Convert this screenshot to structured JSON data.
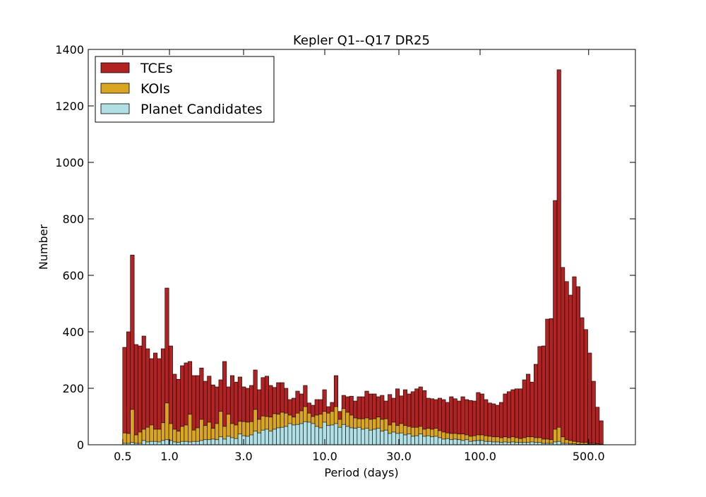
{
  "chart_data": {
    "type": "bar",
    "title": "Kepler Q1--Q17 DR25",
    "xlabel": "Period (days)",
    "ylabel": "Number",
    "xscale": "log",
    "xlim": [
      0.3,
      1000
    ],
    "ylim": [
      0,
      1400
    ],
    "grid": false,
    "legend_position": "top-left",
    "xticks": [
      0.5,
      1.0,
      3.0,
      10.0,
      30.0,
      100.0,
      500.0
    ],
    "xtick_labels": [
      "0.5",
      "1.0",
      "3.0",
      "10.0",
      "30.0",
      "100.0",
      "500.0"
    ],
    "yticks": [
      0,
      200,
      400,
      600,
      800,
      1000,
      1200,
      1400
    ],
    "ytick_labels": [
      "0",
      "200",
      "400",
      "600",
      "800",
      "1000",
      "1200",
      "1400"
    ],
    "bin_range": [
      0.5,
      620
    ],
    "series": [
      {
        "name": "TCEs",
        "color": "#b22222",
        "values": [
          345,
          400,
          672,
          355,
          350,
          385,
          340,
          305,
          325,
          305,
          340,
          555,
          350,
          250,
          232,
          280,
          290,
          295,
          245,
          245,
          272,
          225,
          243,
          212,
          205,
          230,
          295,
          205,
          245,
          222,
          240,
          205,
          200,
          210,
          265,
          195,
          238,
          243,
          210,
          203,
          220,
          220,
          200,
          160,
          165,
          190,
          180,
          210,
          148,
          140,
          160,
          160,
          195,
          135,
          150,
          245,
          118,
          175,
          170,
          172,
          155,
          170,
          170,
          190,
          180,
          180,
          170,
          175,
          155,
          178,
          165,
          198,
          173,
          195,
          180,
          188,
          198,
          205,
          192,
          165,
          163,
          160,
          165,
          160,
          150,
          170,
          163,
          155,
          170,
          160,
          157,
          155,
          185,
          180,
          160,
          148,
          145,
          140,
          150,
          180,
          188,
          195,
          198,
          198,
          230,
          250,
          222,
          285,
          348,
          350,
          445,
          447,
          865,
          1328,
          628,
          578,
          530,
          595,
          560,
          450,
          408,
          325,
          225,
          133,
          85
        ]
      },
      {
        "name": "KOIs",
        "color": "#daa520",
        "values": [
          42,
          40,
          125,
          35,
          45,
          55,
          62,
          70,
          55,
          55,
          78,
          148,
          75,
          55,
          48,
          65,
          70,
          108,
          52,
          60,
          90,
          68,
          80,
          58,
          75,
          118,
          65,
          108,
          75,
          70,
          83,
          82,
          80,
          82,
          125,
          90,
          102,
          100,
          98,
          110,
          108,
          115,
          112,
          105,
          98,
          112,
          120,
          135,
          112,
          100,
          105,
          108,
          118,
          112,
          118,
          135,
          90,
          128,
          115,
          105,
          95,
          92,
          92,
          95,
          90,
          92,
          98,
          90,
          92,
          70,
          80,
          68,
          75,
          68,
          65,
          62,
          62,
          65,
          55,
          58,
          55,
          58,
          50,
          45,
          42,
          40,
          40,
          38,
          38,
          35,
          30,
          32,
          35,
          35,
          32,
          30,
          28,
          28,
          25,
          28,
          25,
          28,
          25,
          22,
          25,
          28,
          28,
          25,
          25,
          20,
          20,
          18,
          55,
          62,
          28,
          18,
          15,
          12,
          10,
          8,
          8,
          5,
          5,
          3,
          2
        ]
      },
      {
        "name": "Planet Candidates",
        "color": "#b0e0e6",
        "values": [
          5,
          5,
          8,
          5,
          5,
          15,
          10,
          12,
          12,
          10,
          15,
          18,
          15,
          10,
          8,
          12,
          12,
          10,
          12,
          12,
          15,
          18,
          18,
          20,
          18,
          28,
          20,
          30,
          25,
          22,
          38,
          32,
          30,
          35,
          48,
          42,
          52,
          55,
          48,
          55,
          60,
          62,
          65,
          75,
          70,
          72,
          75,
          82,
          80,
          75,
          65,
          60,
          80,
          68,
          70,
          75,
          62,
          72,
          65,
          60,
          58,
          62,
          55,
          58,
          52,
          55,
          58,
          48,
          52,
          40,
          45,
          40,
          42,
          35,
          38,
          30,
          32,
          38,
          30,
          32,
          28,
          30,
          25,
          20,
          22,
          18,
          20,
          18,
          15,
          18,
          12,
          14,
          15,
          15,
          12,
          12,
          10,
          10,
          8,
          10,
          8,
          10,
          8,
          8,
          8,
          8,
          10,
          8,
          8,
          5,
          5,
          5,
          10,
          12,
          5,
          5,
          3,
          3,
          2,
          2,
          2,
          2,
          2,
          1,
          1
        ]
      }
    ]
  }
}
